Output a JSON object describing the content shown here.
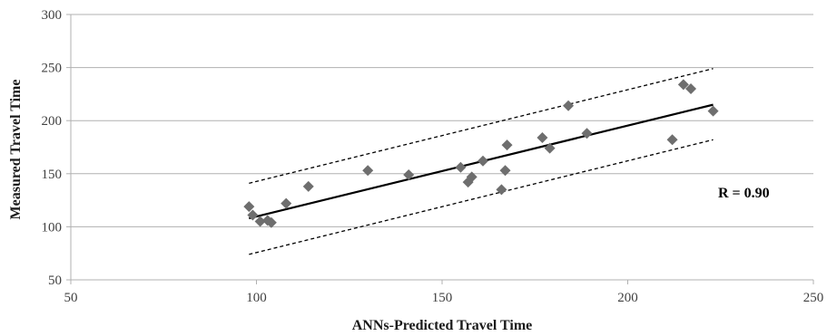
{
  "chart_data": {
    "type": "scatter",
    "title": "",
    "xlabel": "ANNs-Predicted Travel Time",
    "ylabel": "Measured Travel Time",
    "xlim": [
      50,
      250
    ],
    "ylim": [
      50,
      300
    ],
    "xticks": [
      50,
      100,
      150,
      200,
      250
    ],
    "yticks": [
      50,
      100,
      150,
      200,
      250,
      300
    ],
    "grid": "horizontal",
    "legend": "none",
    "annotation": "R = 0.90",
    "colors": {
      "points": "#6e6e6e",
      "fit_line": "#000000",
      "bounds": "#000000",
      "grid": "#b0b0b0"
    },
    "series": [
      {
        "marker": "diamond",
        "points": [
          [
            98,
            119
          ],
          [
            99,
            111
          ],
          [
            101,
            105
          ],
          [
            103,
            106
          ],
          [
            104,
            104
          ],
          [
            108,
            122
          ],
          [
            114,
            138
          ],
          [
            130,
            153
          ],
          [
            141,
            149
          ],
          [
            155,
            156
          ],
          [
            157,
            142
          ],
          [
            158,
            147
          ],
          [
            161,
            162
          ],
          [
            166,
            135
          ],
          [
            167,
            153
          ],
          [
            167.5,
            177
          ],
          [
            177,
            184
          ],
          [
            179,
            174
          ],
          [
            184,
            214
          ],
          [
            189,
            188
          ],
          [
            212,
            182
          ],
          [
            215,
            234
          ],
          [
            217,
            230
          ],
          [
            223,
            209
          ]
        ]
      }
    ],
    "lines": [
      {
        "style": "solid",
        "x": [
          98,
          223
        ],
        "y": [
          108,
          215
        ]
      },
      {
        "style": "dashed",
        "x": [
          98,
          223
        ],
        "y": [
          141,
          249
        ]
      },
      {
        "style": "dashed",
        "x": [
          98,
          223
        ],
        "y": [
          74,
          182
        ]
      }
    ]
  }
}
